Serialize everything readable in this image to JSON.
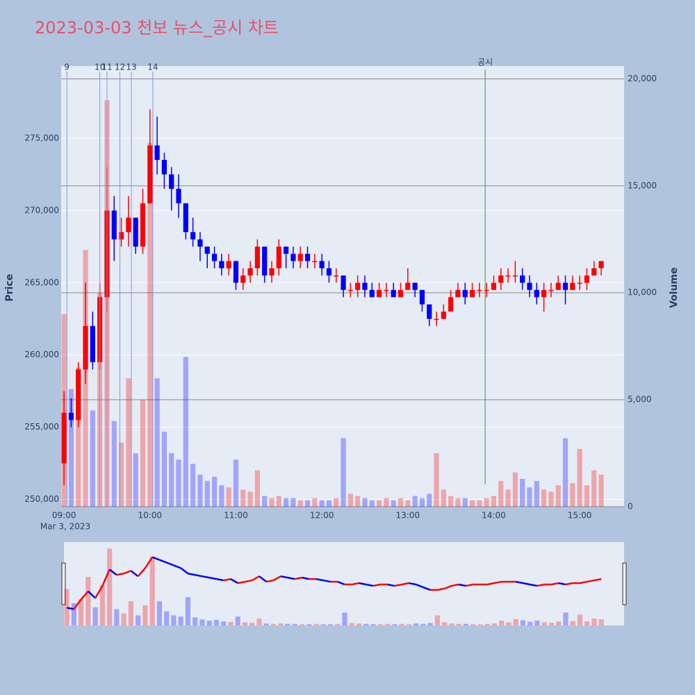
{
  "chart_data": {
    "type": "candlestick",
    "title": "2023-03-03 천보 뉴스_공시 차트",
    "yaxis_title": "Price",
    "y2axis_title": "Volume",
    "x_date_label": "Mar 3, 2023",
    "increasing_color": "#ff0000",
    "decreasing_color": "#0000ff",
    "x": [
      "09:00",
      "09:05",
      "09:10",
      "09:15",
      "09:20",
      "09:25",
      "09:30",
      "09:35",
      "09:40",
      "09:45",
      "09:50",
      "09:55",
      "10:00",
      "10:05",
      "10:10",
      "10:15",
      "10:20",
      "10:25",
      "10:30",
      "10:35",
      "10:40",
      "10:45",
      "10:50",
      "10:55",
      "11:00",
      "11:05",
      "11:10",
      "11:15",
      "11:20",
      "11:25",
      "11:30",
      "11:35",
      "11:40",
      "11:45",
      "11:50",
      "11:55",
      "12:00",
      "12:05",
      "12:10",
      "12:15",
      "12:20",
      "12:25",
      "12:30",
      "12:35",
      "12:40",
      "12:45",
      "12:50",
      "12:55",
      "13:00",
      "13:05",
      "13:10",
      "13:15",
      "13:20",
      "13:25",
      "13:30",
      "13:35",
      "13:40",
      "13:45",
      "13:50",
      "13:55",
      "14:00",
      "14:05",
      "14:10",
      "14:15",
      "14:20",
      "14:25",
      "14:30",
      "14:35",
      "14:40",
      "14:45",
      "14:50",
      "14:55",
      "15:00",
      "15:05",
      "15:10",
      "15:15"
    ],
    "open": [
      252500,
      256000,
      255500,
      259000,
      262000,
      259500,
      264000,
      270000,
      268000,
      268500,
      269500,
      267500,
      270500,
      274500,
      273500,
      272500,
      271500,
      270500,
      268500,
      268000,
      267500,
      267000,
      266500,
      266000,
      266500,
      265000,
      265500,
      266000,
      267500,
      265500,
      266000,
      267500,
      267000,
      266500,
      267000,
      266500,
      266500,
      266000,
      265500,
      265500,
      264500,
      264500,
      265000,
      264500,
      264000,
      264500,
      264500,
      264000,
      264500,
      265000,
      264500,
      263500,
      262500,
      262500,
      263000,
      264000,
      264500,
      264000,
      264500,
      264500,
      264500,
      265000,
      265500,
      265500,
      265500,
      265000,
      264500,
      264000,
      264500,
      264500,
      265000,
      264500,
      265000,
      265000,
      265500,
      266000
    ],
    "high": [
      257500,
      257000,
      259500,
      265000,
      263000,
      265000,
      273000,
      271000,
      269500,
      271000,
      269500,
      271500,
      277000,
      276500,
      274000,
      273000,
      272500,
      270500,
      269500,
      268500,
      267500,
      267500,
      267000,
      267000,
      266500,
      266000,
      266500,
      268000,
      267500,
      266500,
      268000,
      267500,
      267500,
      267500,
      267500,
      267000,
      267000,
      266500,
      266000,
      265500,
      265000,
      265500,
      265500,
      265000,
      265000,
      265000,
      265000,
      265000,
      266000,
      265000,
      264500,
      263500,
      263000,
      263500,
      264500,
      265000,
      265000,
      265000,
      265000,
      265000,
      265500,
      266000,
      266000,
      266500,
      266000,
      265500,
      265000,
      265000,
      265000,
      265500,
      265500,
      265500,
      265500,
      266000,
      266500,
      266500
    ],
    "low": [
      251000,
      255000,
      255000,
      258000,
      259000,
      259000,
      263000,
      266500,
      267500,
      267500,
      267000,
      267000,
      270500,
      272500,
      271500,
      270000,
      269500,
      268000,
      267500,
      266500,
      266000,
      266000,
      265500,
      265500,
      264500,
      264500,
      265000,
      265500,
      265000,
      265000,
      265500,
      266000,
      266000,
      266000,
      266000,
      266000,
      265500,
      265000,
      265000,
      264000,
      264000,
      264000,
      264000,
      264000,
      264000,
      264000,
      264000,
      264000,
      264500,
      264000,
      263000,
      262000,
      262000,
      262500,
      263000,
      264000,
      263500,
      264000,
      264000,
      264000,
      264500,
      264500,
      265000,
      265000,
      264500,
      264000,
      263500,
      263000,
      264000,
      264500,
      263500,
      264500,
      264500,
      264500,
      265500,
      265500
    ],
    "close": [
      256000,
      255500,
      259000,
      262000,
      259500,
      264000,
      270000,
      268000,
      268500,
      269500,
      267500,
      270500,
      274500,
      273500,
      272500,
      271500,
      270500,
      268500,
      268000,
      267500,
      267000,
      266500,
      266000,
      266500,
      265000,
      265500,
      266000,
      267500,
      265500,
      266000,
      267500,
      267000,
      266500,
      267000,
      266500,
      266500,
      266000,
      265500,
      265500,
      264500,
      264500,
      265000,
      264500,
      264000,
      264500,
      264500,
      264000,
      264500,
      265000,
      264500,
      263500,
      262500,
      262500,
      263000,
      264000,
      264500,
      264000,
      264500,
      264500,
      264500,
      265000,
      265500,
      265500,
      265500,
      265000,
      264500,
      264000,
      264500,
      264500,
      265000,
      264500,
      265000,
      265000,
      265500,
      266000,
      266500
    ],
    "volume": [
      9000,
      5500,
      6500,
      12000,
      4500,
      10000,
      19000,
      4000,
      3000,
      6000,
      2500,
      5000,
      17000,
      6000,
      3500,
      2500,
      2200,
      7000,
      2000,
      1500,
      1200,
      1400,
      1000,
      900,
      2200,
      800,
      700,
      1700,
      500,
      400,
      500,
      400,
      400,
      300,
      300,
      400,
      300,
      300,
      400,
      3200,
      600,
      500,
      400,
      300,
      300,
      400,
      300,
      400,
      300,
      500,
      400,
      600,
      2500,
      800,
      500,
      400,
      400,
      300,
      300,
      400,
      500,
      1200,
      800,
      1600,
      1300,
      900,
      1200,
      800,
      700,
      1000,
      3200,
      1100,
      2700,
      1000,
      1700,
      1500
    ],
    "events": [
      {
        "x": "09:02",
        "label": "9"
      },
      {
        "x": "09:25",
        "label": "10"
      },
      {
        "x": "09:30",
        "label": "11"
      },
      {
        "x": "09:39",
        "label": "12"
      },
      {
        "x": "09:47",
        "label": "13"
      },
      {
        "x": "10:02",
        "label": "14"
      }
    ],
    "disclosure": {
      "x": "13:54",
      "label": "공시"
    },
    "xlim": [
      "08:58",
      "15:31"
    ],
    "xticks": [
      "09:00",
      "10:00",
      "11:00",
      "12:00",
      "13:00",
      "14:00",
      "15:00"
    ],
    "ylim": [
      249500,
      280000
    ],
    "yticks": [
      {
        "value": 250000,
        "label": "250,000"
      },
      {
        "value": 255000,
        "label": "255,000"
      },
      {
        "value": 260000,
        "label": "260,000"
      },
      {
        "value": 265000,
        "label": "265,000"
      },
      {
        "value": 270000,
        "label": "270,000"
      },
      {
        "value": 275000,
        "label": "275,000"
      }
    ],
    "y2lim": [
      0,
      20600
    ],
    "y2ticks": [
      0,
      {
        "value": 5000,
        "label": "5,000"
      },
      {
        "value": 10000,
        "label": "10,000"
      },
      {
        "value": 15000,
        "label": "15,000"
      },
      {
        "value": 20000,
        "label": "20,000"
      }
    ],
    "grid": true,
    "rangeslider": true
  }
}
